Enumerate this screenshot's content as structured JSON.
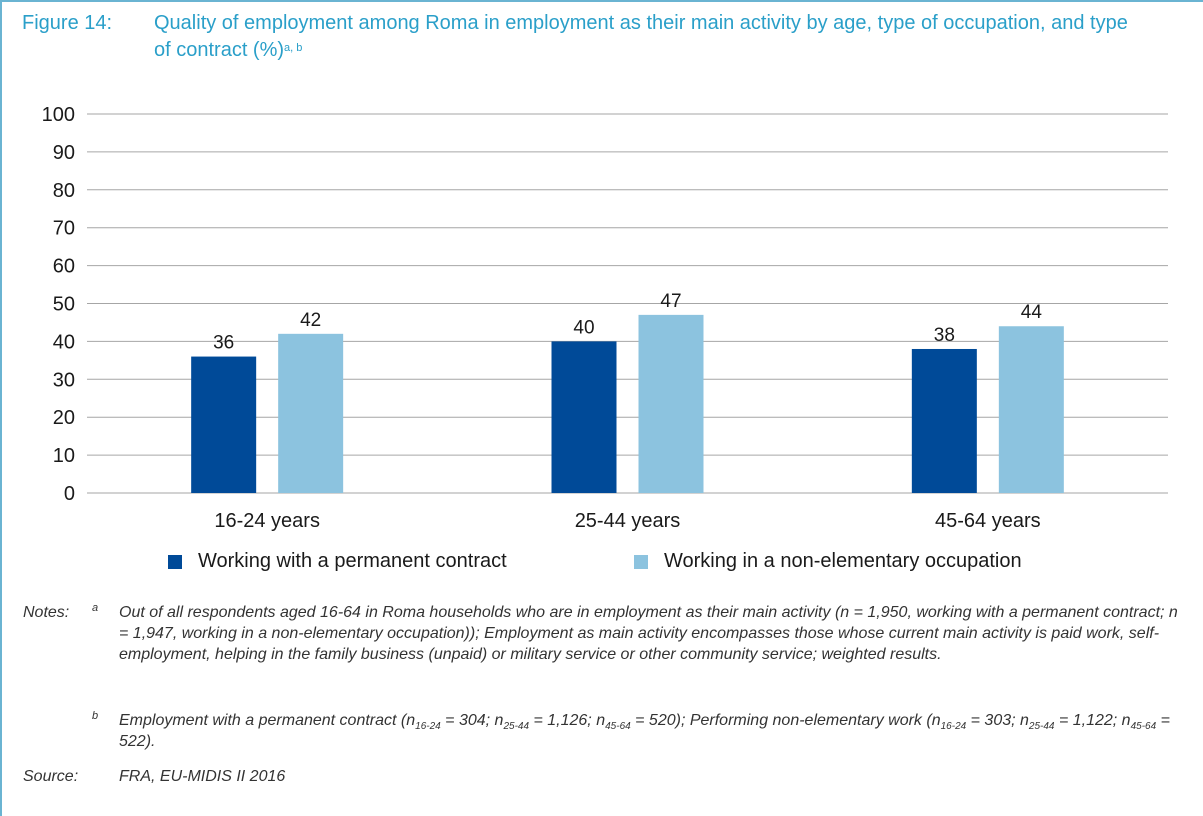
{
  "figure": {
    "number": "Figure 14:",
    "title": "Quality of employment among Roma in employment as their main activity by age, type of occupation, and type of contract (%)",
    "title_footnote_marks": "a, b"
  },
  "chart_data": {
    "type": "bar",
    "categories": [
      "16-24 years",
      "25-44 years",
      "45-64 years"
    ],
    "series": [
      {
        "name": "Working with a permanent contract",
        "values": [
          36,
          40,
          38
        ],
        "color": "#004a98"
      },
      {
        "name": "Working in a non-elementary occupation",
        "values": [
          42,
          47,
          44
        ],
        "color": "#8cc3df"
      }
    ],
    "ylim": [
      0,
      100
    ],
    "yticks": [
      0,
      10,
      20,
      30,
      40,
      50,
      60,
      70,
      80,
      90,
      100
    ],
    "grid": true,
    "legend_position": "bottom",
    "title": "",
    "xlabel": "",
    "ylabel": ""
  },
  "notes": {
    "label": "Notes:",
    "a_marker": "a",
    "a_text": "Out of all respondents aged 16-64 in Roma households who are in employment as their main activity (n = 1,950, working with a permanent contract; n = 1,947, working in a non-elementary occupation)); Employment as main activity encompasses those whose current main activity is paid work, self-employment, helping in the family business (unpaid) or military service or other community service; weighted results.",
    "b_marker": "b",
    "b_parts": {
      "lead": "Employment with a permanent contract (",
      "n": "n",
      "g1": "16-24",
      "v1": " = 304; ",
      "g2": "25-44",
      "v2": " = 1,126; ",
      "g3": "45-64",
      "v3": " = 520); Performing non-elementary work (",
      "w1": " = 303; ",
      "w2": " = 1,122; ",
      "w3": " = 522)."
    }
  },
  "source": {
    "label": "Source:",
    "text": "FRA, EU-MIDIS II 2016"
  }
}
